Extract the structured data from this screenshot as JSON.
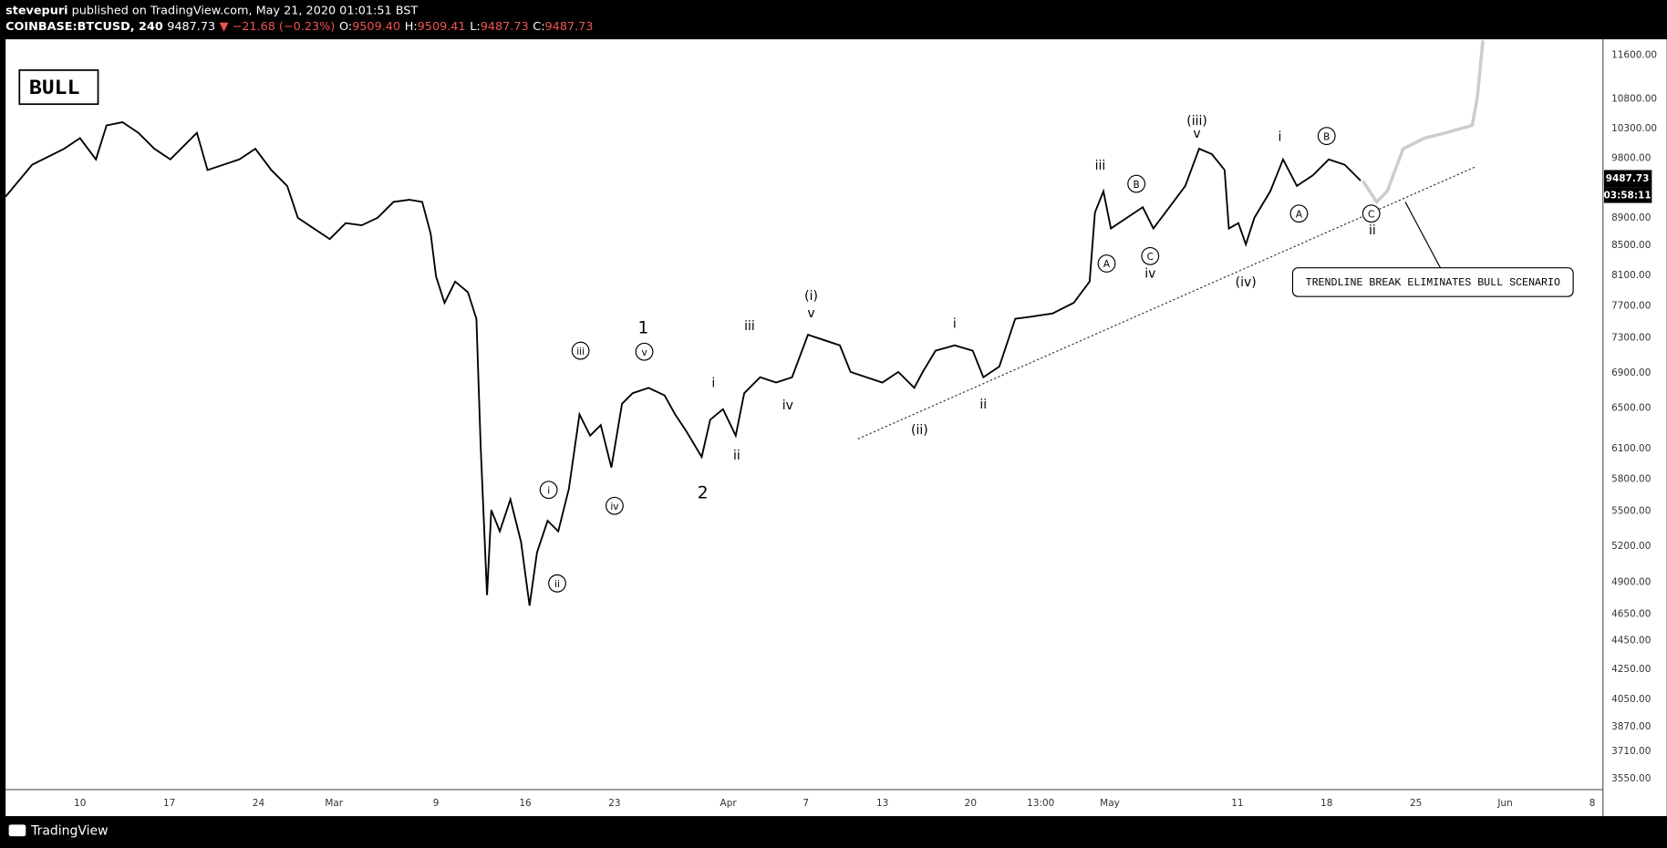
{
  "header": {
    "author": "stevepuri",
    "published": "published on TradingView.com, May 21, 2020 01:01:51 BST",
    "symbol": "COINBASE:BTCUSD, 240",
    "last": "9487.73",
    "change": "▼ −21.68 (−0.23%)",
    "ohlc": [
      {
        "k": "O:",
        "v": "9509.40"
      },
      {
        "k": "H:",
        "v": "9509.41"
      },
      {
        "k": "L:",
        "v": "9487.73"
      },
      {
        "k": "C:",
        "v": "9487.73"
      }
    ]
  },
  "chart": {
    "badge": "BULL",
    "price_axis": [
      "11600.00",
      "10800.00",
      "10300.00",
      "9800.00",
      "8900.00",
      "8500.00",
      "8100.00",
      "7700.00",
      "7300.00",
      "6900.00",
      "6500.00",
      "6100.00",
      "5800.00",
      "5500.00",
      "5200.00",
      "4900.00",
      "4650.00",
      "4450.00",
      "4250.00",
      "4050.00",
      "3870.00",
      "3710.00",
      "3550.00"
    ],
    "last_price": "9487.73",
    "countdown": "03:58:11",
    "time_axis": [
      "10",
      "17",
      "24",
      "Mar",
      "9",
      "16",
      "23",
      "Apr",
      "7",
      "13",
      "20",
      "13:00",
      "May",
      "11",
      "18",
      "25",
      "Jun",
      "8"
    ],
    "waves": [
      {
        "text": "i",
        "circled": true
      },
      {
        "text": "ii",
        "circled": true
      },
      {
        "text": "iii",
        "circled": true
      },
      {
        "text": "iv",
        "circled": true
      },
      {
        "text": "v",
        "circled": true
      },
      {
        "text": "1",
        "circled": false
      },
      {
        "text": "2",
        "circled": false
      },
      {
        "text": "i",
        "circled": false
      },
      {
        "text": "ii",
        "circled": false
      },
      {
        "text": "iii",
        "circled": false
      },
      {
        "text": "iv",
        "circled": false
      },
      {
        "text": "(i)",
        "circled": false
      },
      {
        "text": "v",
        "circled": false
      },
      {
        "text": "(ii)",
        "circled": false
      },
      {
        "text": "i",
        "circled": false
      },
      {
        "text": "ii",
        "circled": false
      },
      {
        "text": "iii",
        "circled": false
      },
      {
        "text": "A",
        "circled": true
      },
      {
        "text": "B",
        "circled": true
      },
      {
        "text": "C",
        "circled": true
      },
      {
        "text": "iv",
        "circled": false
      },
      {
        "text": "(iii)",
        "circled": false
      },
      {
        "text": "v",
        "circled": false
      },
      {
        "text": "(iv)",
        "circled": false
      },
      {
        "text": "i",
        "circled": false
      },
      {
        "text": "A",
        "circled": true
      },
      {
        "text": "B",
        "circled": true
      },
      {
        "text": "C",
        "circled": true
      },
      {
        "text": "ii",
        "circled": false
      }
    ],
    "callout": "TRENDLINE BREAK ELIMINATES BULL SCENARIO"
  },
  "footer": {
    "brand": "TradingView"
  }
}
